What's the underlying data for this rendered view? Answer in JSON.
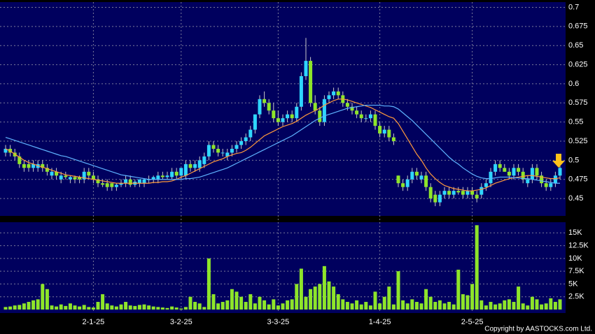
{
  "chart_data": [
    {
      "type": "candlestick",
      "categories": [
        null,
        null,
        null,
        null,
        null,
        null,
        null,
        null,
        null,
        null,
        null,
        null,
        null,
        null,
        null,
        null,
        null,
        null,
        null,
        "2-1-25",
        null,
        null,
        null,
        null,
        null,
        null,
        null,
        null,
        null,
        null,
        null,
        null,
        null,
        null,
        null,
        null,
        null,
        null,
        "3-2-25",
        null,
        null,
        null,
        null,
        null,
        null,
        null,
        null,
        null,
        null,
        null,
        null,
        null,
        null,
        null,
        null,
        null,
        null,
        null,
        null,
        "3-3-25",
        null,
        null,
        null,
        null,
        null,
        null,
        null,
        null,
        null,
        null,
        null,
        null,
        null,
        null,
        null,
        null,
        null,
        null,
        null,
        null,
        null,
        "1-4-25",
        null,
        null,
        null,
        null,
        null,
        null,
        null,
        null,
        null,
        null,
        null,
        null,
        null,
        null,
        null,
        null,
        null,
        null,
        null,
        "2-5-25",
        null,
        null,
        null,
        null,
        null,
        null,
        null,
        null,
        null,
        null,
        null,
        null,
        null,
        null,
        null,
        null,
        null,
        null,
        null
      ],
      "open": [
        0.51,
        0.515,
        0.51,
        0.505,
        0.495,
        0.495,
        0.49,
        0.49,
        0.495,
        0.49,
        0.48,
        0.485,
        0.475,
        0.48,
        0.475,
        0.478,
        0.478,
        0.475,
        0.485,
        0.48,
        0.475,
        0.47,
        0.47,
        0.47,
        0.465,
        0.468,
        0.47,
        0.475,
        0.468,
        0.47,
        0.47,
        0.475,
        0.475,
        0.475,
        0.48,
        0.478,
        0.478,
        0.485,
        0.48,
        0.48,
        0.495,
        0.49,
        0.49,
        0.495,
        0.505,
        0.52,
        0.515,
        0.51,
        0.505,
        0.51,
        0.515,
        0.52,
        0.525,
        0.53,
        0.54,
        0.56,
        0.58,
        0.575,
        0.565,
        0.555,
        0.55,
        0.555,
        0.56,
        0.555,
        0.57,
        0.61,
        0.63,
        0.575,
        0.565,
        0.55,
        0.58,
        0.585,
        0.59,
        0.585,
        0.575,
        0.57,
        0.565,
        0.56,
        0.555,
        0.555,
        0.56,
        0.545,
        0.535,
        0.54,
        0.53,
        0.48,
        0.47,
        0.465,
        0.475,
        0.485,
        0.475,
        0.48,
        0.465,
        0.455,
        0.445,
        0.455,
        0.46,
        0.455,
        0.46,
        0.46,
        0.455,
        0.46,
        0.455,
        0.455,
        0.465,
        0.47,
        0.485,
        0.495,
        0.49,
        0.485,
        0.48,
        0.49,
        0.485,
        0.47,
        0.475,
        0.49,
        0.48,
        0.47,
        0.465,
        0.47,
        0.48
      ],
      "high": [
        0.52,
        0.52,
        0.515,
        0.51,
        0.5,
        0.5,
        0.5,
        0.5,
        0.5,
        0.495,
        0.49,
        0.49,
        0.485,
        0.485,
        0.48,
        0.48,
        0.48,
        0.49,
        0.49,
        0.485,
        0.48,
        0.475,
        0.475,
        0.47,
        0.47,
        0.475,
        0.48,
        0.48,
        0.475,
        0.475,
        0.475,
        0.48,
        0.48,
        0.485,
        0.485,
        0.485,
        0.49,
        0.49,
        0.49,
        0.5,
        0.5,
        0.5,
        0.505,
        0.51,
        0.525,
        0.525,
        0.52,
        0.515,
        0.515,
        0.52,
        0.525,
        0.53,
        0.535,
        0.545,
        0.56,
        0.585,
        0.59,
        0.58,
        0.575,
        0.565,
        0.56,
        0.565,
        0.565,
        0.575,
        0.615,
        0.66,
        0.635,
        0.585,
        0.57,
        0.585,
        0.59,
        0.595,
        0.595,
        0.59,
        0.58,
        0.575,
        0.57,
        0.565,
        0.56,
        0.565,
        0.565,
        0.55,
        0.545,
        0.545,
        0.535,
        0.48,
        0.475,
        0.48,
        0.49,
        0.49,
        0.485,
        0.485,
        0.47,
        0.46,
        0.46,
        0.465,
        0.465,
        0.465,
        0.465,
        0.465,
        0.465,
        0.465,
        0.46,
        0.47,
        0.475,
        0.49,
        0.5,
        0.5,
        0.495,
        0.49,
        0.495,
        0.495,
        0.49,
        0.48,
        0.495,
        0.495,
        0.485,
        0.475,
        0.475,
        0.485,
        0.495
      ],
      "low": [
        0.505,
        0.505,
        0.5,
        0.49,
        0.485,
        0.485,
        0.485,
        0.485,
        0.485,
        0.48,
        0.475,
        0.475,
        0.47,
        0.475,
        0.47,
        0.47,
        0.47,
        0.47,
        0.475,
        0.47,
        0.465,
        0.465,
        0.46,
        0.46,
        0.46,
        0.465,
        0.465,
        0.465,
        0.465,
        0.465,
        0.465,
        0.47,
        0.47,
        0.47,
        0.475,
        0.475,
        0.475,
        0.475,
        0.475,
        0.475,
        0.485,
        0.485,
        0.485,
        0.49,
        0.5,
        0.51,
        0.505,
        0.505,
        0.5,
        0.505,
        0.51,
        0.515,
        0.52,
        0.525,
        0.535,
        0.555,
        0.57,
        0.56,
        0.55,
        0.545,
        0.545,
        0.55,
        0.55,
        0.55,
        0.565,
        0.605,
        0.57,
        0.56,
        0.545,
        0.545,
        0.575,
        0.58,
        0.58,
        0.57,
        0.565,
        0.56,
        0.555,
        0.55,
        0.55,
        0.55,
        0.54,
        0.53,
        0.53,
        0.525,
        0.52,
        0.465,
        0.46,
        0.46,
        0.47,
        0.475,
        0.47,
        0.46,
        0.445,
        0.44,
        0.44,
        0.45,
        0.45,
        0.45,
        0.455,
        0.45,
        0.45,
        0.45,
        0.445,
        0.45,
        0.46,
        0.465,
        0.48,
        0.485,
        0.485,
        0.475,
        0.475,
        0.48,
        0.47,
        0.465,
        0.47,
        0.475,
        0.465,
        0.46,
        0.46,
        0.465,
        0.475
      ],
      "close": [
        0.515,
        0.51,
        0.505,
        0.495,
        0.49,
        0.49,
        0.495,
        0.495,
        0.49,
        0.485,
        0.485,
        0.48,
        0.48,
        0.478,
        0.478,
        0.475,
        0.475,
        0.485,
        0.48,
        0.475,
        0.47,
        0.468,
        0.465,
        0.465,
        0.468,
        0.47,
        0.475,
        0.468,
        0.472,
        0.475,
        0.475,
        0.475,
        0.478,
        0.48,
        0.478,
        0.48,
        0.485,
        0.48,
        0.49,
        0.495,
        0.49,
        0.495,
        0.5,
        0.505,
        0.52,
        0.515,
        0.51,
        0.51,
        0.51,
        0.515,
        0.52,
        0.525,
        0.53,
        0.54,
        0.56,
        0.58,
        0.575,
        0.565,
        0.555,
        0.55,
        0.555,
        0.56,
        0.555,
        0.57,
        0.61,
        0.63,
        0.575,
        0.565,
        0.55,
        0.58,
        0.585,
        0.59,
        0.585,
        0.575,
        0.57,
        0.565,
        0.56,
        0.555,
        0.555,
        0.56,
        0.545,
        0.535,
        0.54,
        0.53,
        0.525,
        0.47,
        0.465,
        0.475,
        0.485,
        0.48,
        0.48,
        0.465,
        0.45,
        0.445,
        0.455,
        0.46,
        0.455,
        0.46,
        0.458,
        0.455,
        0.46,
        0.455,
        0.45,
        0.465,
        0.47,
        0.485,
        0.495,
        0.49,
        0.485,
        0.48,
        0.49,
        0.485,
        0.475,
        0.475,
        0.49,
        0.48,
        0.47,
        0.465,
        0.47,
        0.48,
        0.49
      ],
      "series": [
        {
          "color": "#ff9a3c",
          "values": [
            0.515,
            0.512,
            0.508,
            0.504,
            0.5,
            0.497,
            0.495,
            0.493,
            0.491,
            0.489,
            0.487,
            0.485,
            0.483,
            0.481,
            0.48,
            0.479,
            0.478,
            0.477,
            0.476,
            0.475,
            0.474,
            0.473,
            0.472,
            0.471,
            0.47,
            0.47,
            0.47,
            0.47,
            0.47,
            0.47,
            0.47,
            0.47,
            0.471,
            0.471,
            0.472,
            0.472,
            0.473,
            0.475,
            0.478,
            0.48,
            0.483,
            0.486,
            0.489,
            0.492,
            0.495,
            0.498,
            0.5,
            0.502,
            0.505,
            0.507,
            0.509,
            0.51,
            0.513,
            0.517,
            0.522,
            0.527,
            0.532,
            0.535,
            0.538,
            0.541,
            0.544,
            0.546,
            0.548,
            0.551,
            0.555,
            0.559,
            0.562,
            0.565,
            0.568,
            0.572,
            0.575,
            0.578,
            0.58,
            0.58,
            0.579,
            0.577,
            0.575,
            0.573,
            0.571,
            0.569,
            0.566,
            0.563,
            0.56,
            0.557,
            0.555,
            0.548,
            0.538,
            0.528,
            0.518,
            0.508,
            0.5,
            0.49,
            0.482,
            0.476,
            0.471,
            0.467,
            0.465,
            0.463,
            0.462,
            0.461,
            0.46,
            0.46,
            0.461,
            0.462,
            0.464,
            0.467,
            0.47,
            0.472,
            0.474,
            0.476,
            0.477,
            0.478,
            0.479,
            0.48,
            0.48,
            0.479,
            0.478,
            0.477,
            0.476,
            0.476,
            0.477
          ]
        },
        {
          "color": "#5fb4ff",
          "values": [
            0.53,
            0.528,
            0.526,
            0.524,
            0.522,
            0.52,
            0.518,
            0.516,
            0.514,
            0.512,
            0.51,
            0.508,
            0.506,
            0.505,
            0.503,
            0.501,
            0.499,
            0.497,
            0.495,
            0.493,
            0.491,
            0.489,
            0.487,
            0.485,
            0.483,
            0.481,
            0.48,
            0.479,
            0.478,
            0.477,
            0.476,
            0.475,
            0.475,
            0.475,
            0.475,
            0.475,
            0.475,
            0.475,
            0.475,
            0.476,
            0.476,
            0.477,
            0.478,
            0.48,
            0.482,
            0.484,
            0.486,
            0.488,
            0.49,
            0.493,
            0.496,
            0.499,
            0.502,
            0.505,
            0.508,
            0.511,
            0.514,
            0.517,
            0.52,
            0.523,
            0.526,
            0.529,
            0.532,
            0.536,
            0.54,
            0.544,
            0.548,
            0.552,
            0.555,
            0.558,
            0.56,
            0.562,
            0.564,
            0.566,
            0.568,
            0.569,
            0.57,
            0.571,
            0.572,
            0.572,
            0.572,
            0.572,
            0.571,
            0.571,
            0.57,
            0.567,
            0.562,
            0.557,
            0.552,
            0.546,
            0.54,
            0.534,
            0.528,
            0.522,
            0.516,
            0.51,
            0.504,
            0.499,
            0.495,
            0.49,
            0.486,
            0.482,
            0.479,
            0.477,
            0.476,
            0.476,
            0.477,
            0.478,
            0.478,
            0.478,
            0.477,
            0.477,
            0.476,
            0.476,
            0.475,
            0.474,
            0.473,
            0.472,
            0.471,
            0.47,
            0.47
          ]
        }
      ],
      "up_color": "#2fd6ff",
      "down_color": "#8ee52a",
      "ylim": [
        0.43,
        0.705
      ],
      "yticks": [
        0.45,
        0.475,
        0.5,
        0.525,
        0.55,
        0.575,
        0.6,
        0.625,
        0.65,
        0.675,
        0.7
      ],
      "grid": true
    },
    {
      "type": "bar",
      "values": [
        500,
        600,
        800,
        900,
        1200,
        1500,
        1800,
        2000,
        5000,
        4000,
        800,
        600,
        1000,
        700,
        1200,
        800,
        600,
        900,
        500,
        400,
        1500,
        3000,
        1200,
        800,
        600,
        1000,
        1500,
        800,
        700,
        900,
        1000,
        800,
        600,
        500,
        400,
        300,
        600,
        400,
        200,
        500,
        2500,
        1500,
        1200,
        500,
        10000,
        3000,
        1200,
        1500,
        1800,
        4000,
        3500,
        2500,
        1500,
        3000,
        1200,
        2500,
        1800,
        1000,
        2000,
        800,
        1200,
        1800,
        2000,
        5000,
        8000,
        2500,
        4000,
        4500,
        5000,
        8500,
        5500,
        4500,
        3000,
        2000,
        1500,
        1200,
        1800,
        1000,
        1500,
        800,
        3500,
        1200,
        2500,
        4500,
        1000,
        7500,
        1800,
        1200,
        2000,
        1500,
        1200,
        4000,
        2500,
        1500,
        1800,
        1200,
        1500,
        1000,
        7800,
        3000,
        2800,
        5000,
        16500,
        1800,
        800,
        1500,
        1000,
        1200,
        1800,
        2000,
        1500,
        4500,
        1200,
        800,
        2500,
        2000,
        1000,
        1200,
        2200,
        1500,
        2000
      ],
      "color": "#8ee52a",
      "ylim": [
        0,
        17500
      ],
      "yticks": [
        {
          "value": 2500,
          "label": "2.5K"
        },
        {
          "value": 5000,
          "label": "5K"
        },
        {
          "value": 7500,
          "label": "7.5K"
        },
        {
          "value": 10000,
          "label": "10K"
        },
        {
          "value": 12500,
          "label": "12.5K"
        },
        {
          "value": 15000,
          "label": "15K"
        }
      ],
      "grid": true
    }
  ],
  "copyright": "Copyright by AASTOCKS.com Ltd."
}
